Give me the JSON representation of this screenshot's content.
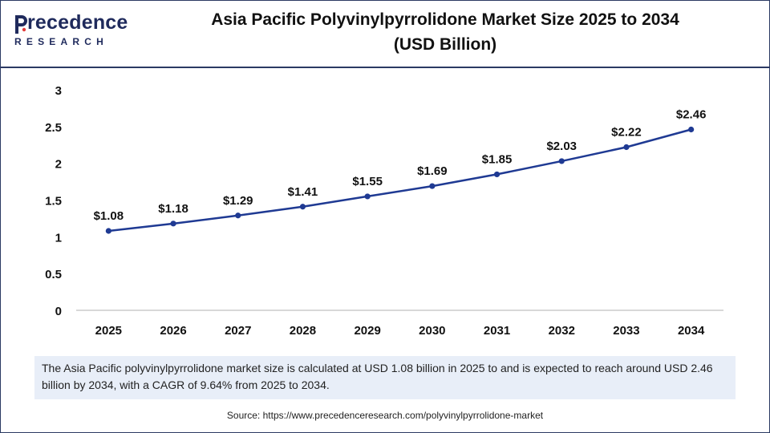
{
  "brand": {
    "name": "Precedence",
    "name_rest": "recedence",
    "name_initial": "P",
    "sub": "RESEARCH",
    "color": "#1f2a5c"
  },
  "title_line1": "Asia Pacific Polyvinylpyrrolidone Market Size 2025 to 2034",
  "title_line2": "(USD Billion)",
  "note": "The Asia Pacific polyvinylpyrrolidone market size is calculated at USD 1.08 billion in 2025 to and is expected to reach around USD 2.46 billion by 2034, with a CAGR of 9.64% from 2025 to 2034.",
  "source": "Source: https://www.precedenceresearch.com/polyvinylpyrrolidone-market",
  "colors": {
    "line": "#1f3a93",
    "axis": "#b0b0b0",
    "note_bg": "#e8eef8"
  },
  "chart_data": {
    "type": "line",
    "title": "Asia Pacific Polyvinylpyrrolidone Market Size 2025 to 2034 (USD Billion)",
    "xlabel": "",
    "ylabel": "",
    "categories": [
      "2025",
      "2026",
      "2027",
      "2028",
      "2029",
      "2030",
      "2031",
      "2032",
      "2033",
      "2034"
    ],
    "values": [
      1.08,
      1.18,
      1.29,
      1.41,
      1.55,
      1.69,
      1.85,
      2.03,
      2.22,
      2.46
    ],
    "data_labels": [
      "$1.08",
      "$1.18",
      "$1.29",
      "$1.41",
      "$1.55",
      "$1.69",
      "$1.85",
      "$2.03",
      "$2.22",
      "$2.46"
    ],
    "yticks": [
      "0",
      "0.5",
      "1",
      "1.5",
      "2",
      "2.5",
      "3"
    ],
    "ylim": [
      0,
      3
    ],
    "grid": false,
    "legend": "none"
  }
}
